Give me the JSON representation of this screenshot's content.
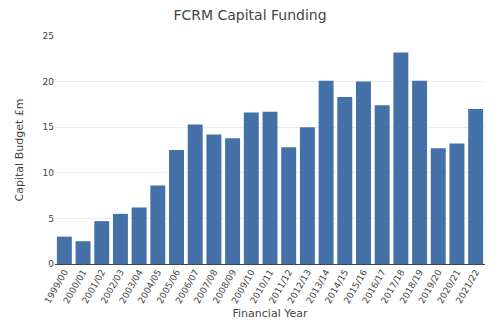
{
  "chart_data": {
    "type": "bar",
    "title": "FCRM Capital Funding",
    "xlabel": "Financial Year",
    "ylabel": "Capital Budget £m",
    "categories": [
      "1999/00",
      "2000/01",
      "2001/02",
      "2002/03",
      "2003/04",
      "2004/05",
      "2005/06",
      "2006/07",
      "2007/08",
      "2008/09",
      "2009/10",
      "2010/11",
      "2011/12",
      "2012/13",
      "2013/14",
      "2014/15",
      "2015/16",
      "2016/17",
      "2017/18",
      "2018/19",
      "2019/20",
      "2020/21",
      "2021/22"
    ],
    "values": [
      3.0,
      2.5,
      4.7,
      5.5,
      6.2,
      8.6,
      12.5,
      15.3,
      14.2,
      13.8,
      16.6,
      16.7,
      12.8,
      15.0,
      20.1,
      18.3,
      20.0,
      17.4,
      23.2,
      20.1,
      12.7,
      13.2,
      17.0
    ],
    "color": "#4472a8",
    "ylim": [
      0,
      25
    ],
    "yticks": [
      0,
      5,
      10,
      15,
      20,
      25
    ],
    "grid": true
  }
}
